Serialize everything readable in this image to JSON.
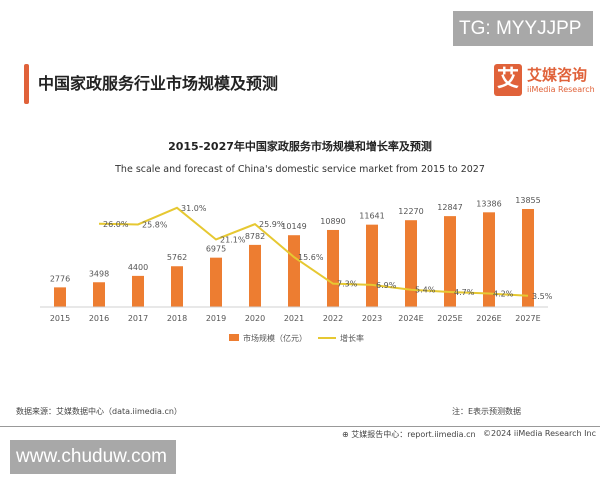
{
  "watermarks": {
    "top": "TG: MYYJJPP",
    "bottom": "www.chuduw.com"
  },
  "header": {
    "title": "中国家政服务行业市场规模及预测"
  },
  "logo": {
    "mark": "艾",
    "cn": "艾媒咨询",
    "en": "iiMedia Research"
  },
  "colors": {
    "bar": "#ed7d31",
    "line": "#e6c832",
    "accent": "#e0623a"
  },
  "chart_data": {
    "type": "bar+line",
    "title": "2015-2027年中国家政服务市场规模和增长率及预测",
    "subtitle": "The scale and forecast of China's domestic service market from 2015 to 2027",
    "categories": [
      "2015",
      "2016",
      "2017",
      "2018",
      "2019",
      "2020",
      "2021",
      "2022",
      "2023",
      "2024E",
      "2025E",
      "2026E",
      "2027E"
    ],
    "series": [
      {
        "name": "市场规模（亿元）",
        "type": "bar",
        "values": [
          2776,
          3498,
          4400,
          5762,
          6975,
          8782,
          10149,
          10890,
          11641,
          12270,
          12847,
          13386,
          13855
        ]
      },
      {
        "name": "增长率",
        "type": "line",
        "values": [
          null,
          26.0,
          25.8,
          31.0,
          21.1,
          25.9,
          15.6,
          7.3,
          6.9,
          5.4,
          4.7,
          4.2,
          3.5
        ],
        "labels": [
          "",
          "26.0%",
          "25.8%",
          "31.0%",
          "21.1%",
          "25.9%",
          "15.6%",
          "7.3%",
          "6.9%",
          "5.4%",
          "4.7%",
          "4.2%",
          "3.5%"
        ]
      }
    ],
    "legend": "bottom",
    "grid": false
  },
  "footer": {
    "source": "数据来源：艾媒数据中心（data.iimedia.cn）",
    "note": "注：E表示预测数据",
    "report": "艾媒报告中心：report.iimedia.cn",
    "copyright": "©2024  iiMedia Research  Inc"
  }
}
